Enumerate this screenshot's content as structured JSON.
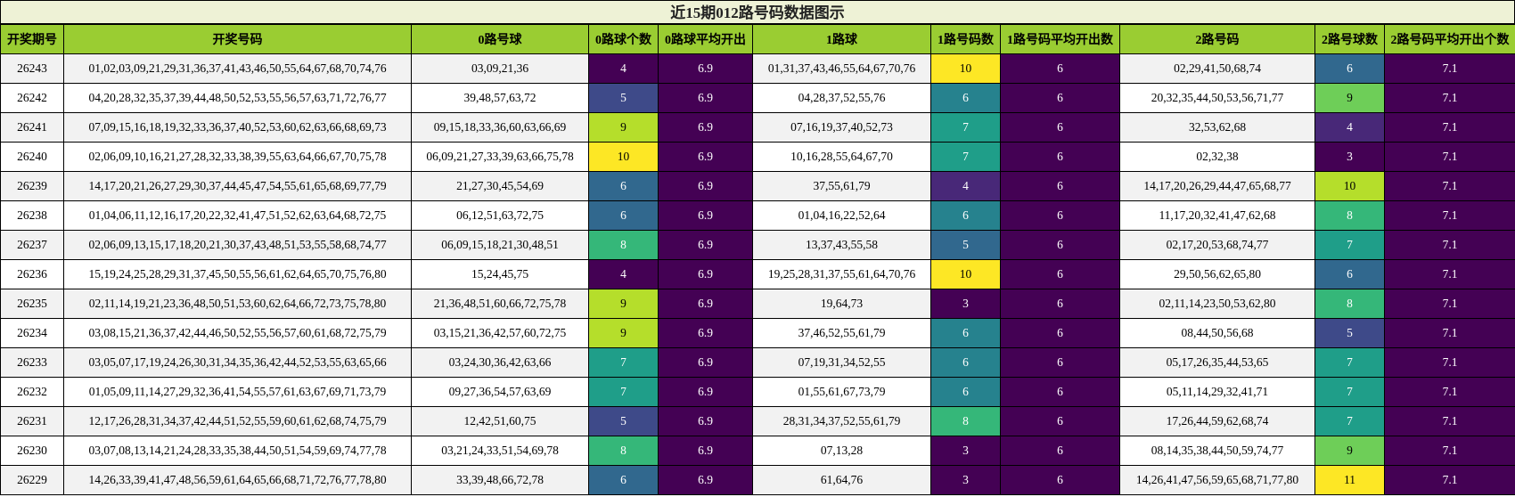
{
  "title": "近15期012路号码数据图示",
  "columns": [
    "开奖期号",
    "开奖号码",
    "0路号球",
    "0路球个数",
    "0路球平均开出",
    "1路球",
    "1路号码数",
    "1路号码平均开出数",
    "2路号码",
    "2路号球数",
    "2路号码平均开出个数"
  ],
  "colormap": [
    "#440154",
    "#482878",
    "#3e4a89",
    "#31688e",
    "#26828e",
    "#1f9e89",
    "#35b779",
    "#6ece58",
    "#b5de2b",
    "#fde725"
  ],
  "chart_data": {
    "type": "table",
    "rows": [
      {
        "issue": "26243",
        "numbers": "01,02,03,09,21,29,31,36,37,41,43,46,50,55,64,67,68,70,74,76",
        "r0": "03,09,21,36",
        "c0": 4,
        "a0": "6.9",
        "r1": "01,31,37,43,46,55,64,67,70,76",
        "c1": 10,
        "a1": "6",
        "r2": "02,29,41,50,68,74",
        "c2": 6,
        "a2": "7.1"
      },
      {
        "issue": "26242",
        "numbers": "04,20,28,32,35,37,39,44,48,50,52,53,55,56,57,63,71,72,76,77",
        "r0": "39,48,57,63,72",
        "c0": 5,
        "a0": "6.9",
        "r1": "04,28,37,52,55,76",
        "c1": 6,
        "a1": "6",
        "r2": "20,32,35,44,50,53,56,71,77",
        "c2": 9,
        "a2": "7.1"
      },
      {
        "issue": "26241",
        "numbers": "07,09,15,16,18,19,32,33,36,37,40,52,53,60,62,63,66,68,69,73",
        "r0": "09,15,18,33,36,60,63,66,69",
        "c0": 9,
        "a0": "6.9",
        "r1": "07,16,19,37,40,52,73",
        "c1": 7,
        "a1": "6",
        "r2": "32,53,62,68",
        "c2": 4,
        "a2": "7.1"
      },
      {
        "issue": "26240",
        "numbers": "02,06,09,10,16,21,27,28,32,33,38,39,55,63,64,66,67,70,75,78",
        "r0": "06,09,21,27,33,39,63,66,75,78",
        "c0": 10,
        "a0": "6.9",
        "r1": "10,16,28,55,64,67,70",
        "c1": 7,
        "a1": "6",
        "r2": "02,32,38",
        "c2": 3,
        "a2": "7.1"
      },
      {
        "issue": "26239",
        "numbers": "14,17,20,21,26,27,29,30,37,44,45,47,54,55,61,65,68,69,77,79",
        "r0": "21,27,30,45,54,69",
        "c0": 6,
        "a0": "6.9",
        "r1": "37,55,61,79",
        "c1": 4,
        "a1": "6",
        "r2": "14,17,20,26,29,44,47,65,68,77",
        "c2": 10,
        "a2": "7.1"
      },
      {
        "issue": "26238",
        "numbers": "01,04,06,11,12,16,17,20,22,32,41,47,51,52,62,63,64,68,72,75",
        "r0": "06,12,51,63,72,75",
        "c0": 6,
        "a0": "6.9",
        "r1": "01,04,16,22,52,64",
        "c1": 6,
        "a1": "6",
        "r2": "11,17,20,32,41,47,62,68",
        "c2": 8,
        "a2": "7.1"
      },
      {
        "issue": "26237",
        "numbers": "02,06,09,13,15,17,18,20,21,30,37,43,48,51,53,55,58,68,74,77",
        "r0": "06,09,15,18,21,30,48,51",
        "c0": 8,
        "a0": "6.9",
        "r1": "13,37,43,55,58",
        "c1": 5,
        "a1": "6",
        "r2": "02,17,20,53,68,74,77",
        "c2": 7,
        "a2": "7.1"
      },
      {
        "issue": "26236",
        "numbers": "15,19,24,25,28,29,31,37,45,50,55,56,61,62,64,65,70,75,76,80",
        "r0": "15,24,45,75",
        "c0": 4,
        "a0": "6.9",
        "r1": "19,25,28,31,37,55,61,64,70,76",
        "c1": 10,
        "a1": "6",
        "r2": "29,50,56,62,65,80",
        "c2": 6,
        "a2": "7.1"
      },
      {
        "issue": "26235",
        "numbers": "02,11,14,19,21,23,36,48,50,51,53,60,62,64,66,72,73,75,78,80",
        "r0": "21,36,48,51,60,66,72,75,78",
        "c0": 9,
        "a0": "6.9",
        "r1": "19,64,73",
        "c1": 3,
        "a1": "6",
        "r2": "02,11,14,23,50,53,62,80",
        "c2": 8,
        "a2": "7.1"
      },
      {
        "issue": "26234",
        "numbers": "03,08,15,21,36,37,42,44,46,50,52,55,56,57,60,61,68,72,75,79",
        "r0": "03,15,21,36,42,57,60,72,75",
        "c0": 9,
        "a0": "6.9",
        "r1": "37,46,52,55,61,79",
        "c1": 6,
        "a1": "6",
        "r2": "08,44,50,56,68",
        "c2": 5,
        "a2": "7.1"
      },
      {
        "issue": "26233",
        "numbers": "03,05,07,17,19,24,26,30,31,34,35,36,42,44,52,53,55,63,65,66",
        "r0": "03,24,30,36,42,63,66",
        "c0": 7,
        "a0": "6.9",
        "r1": "07,19,31,34,52,55",
        "c1": 6,
        "a1": "6",
        "r2": "05,17,26,35,44,53,65",
        "c2": 7,
        "a2": "7.1"
      },
      {
        "issue": "26232",
        "numbers": "01,05,09,11,14,27,29,32,36,41,54,55,57,61,63,67,69,71,73,79",
        "r0": "09,27,36,54,57,63,69",
        "c0": 7,
        "a0": "6.9",
        "r1": "01,55,61,67,73,79",
        "c1": 6,
        "a1": "6",
        "r2": "05,11,14,29,32,41,71",
        "c2": 7,
        "a2": "7.1"
      },
      {
        "issue": "26231",
        "numbers": "12,17,26,28,31,34,37,42,44,51,52,55,59,60,61,62,68,74,75,79",
        "r0": "12,42,51,60,75",
        "c0": 5,
        "a0": "6.9",
        "r1": "28,31,34,37,52,55,61,79",
        "c1": 8,
        "a1": "6",
        "r2": "17,26,44,59,62,68,74",
        "c2": 7,
        "a2": "7.1"
      },
      {
        "issue": "26230",
        "numbers": "03,07,08,13,14,21,24,28,33,35,38,44,50,51,54,59,69,74,77,78",
        "r0": "03,21,24,33,51,54,69,78",
        "c0": 8,
        "a0": "6.9",
        "r1": "07,13,28",
        "c1": 3,
        "a1": "6",
        "r2": "08,14,35,38,44,50,59,74,77",
        "c2": 9,
        "a2": "7.1"
      },
      {
        "issue": "26229",
        "numbers": "14,26,33,39,41,47,48,56,59,61,64,65,66,68,71,72,76,77,78,80",
        "r0": "33,39,48,66,72,78",
        "c0": 6,
        "a0": "6.9",
        "r1": "61,64,76",
        "c1": 3,
        "a1": "6",
        "r2": "14,26,41,47,56,59,65,68,71,77,80",
        "c2": 11,
        "a2": "7.1"
      }
    ]
  }
}
